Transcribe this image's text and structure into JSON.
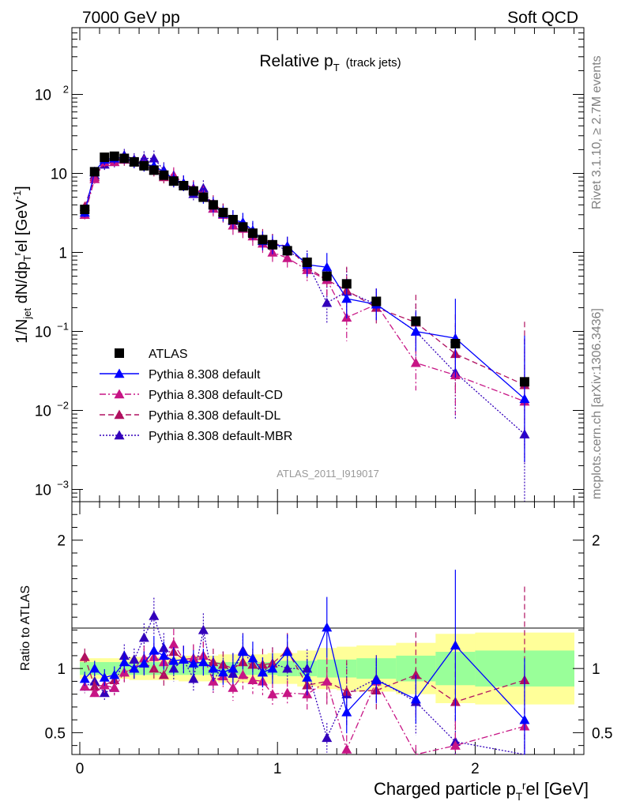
{
  "header": {
    "left": "7000 GeV pp",
    "right": "Soft QCD"
  },
  "side_text": {
    "top": "Rivet 3.1.10, ≥ 2.7M events",
    "bottom": "mcplots.cern.ch [arXiv:1306.3436]"
  },
  "chart_data": [
    {
      "type": "scatter",
      "panel": "main",
      "title": "Relative p",
      "title_sub": "T",
      "title_extra": "(track jets)",
      "watermark": "ATLAS_2011_I919017",
      "ylabel": "1/N_jet dN/dp_T^rel [GeV^-1]",
      "yscale": "log",
      "xlim": [
        -0.04,
        2.55
      ],
      "ylim": [
        0.0007,
        700
      ],
      "y_ticks": [
        {
          "v": 0.001,
          "label": "10",
          "sup": "−3"
        },
        {
          "v": 0.01,
          "label": "10",
          "sup": "−2"
        },
        {
          "v": 0.1,
          "label": "10",
          "sup": "−1"
        },
        {
          "v": 1,
          "label": "1",
          "sup": ""
        },
        {
          "v": 10,
          "label": "10",
          "sup": ""
        },
        {
          "v": 100,
          "label": "10",
          "sup": "2"
        }
      ],
      "legend_position": "lower-left",
      "x": [
        0.025,
        0.075,
        0.125,
        0.175,
        0.225,
        0.275,
        0.325,
        0.375,
        0.425,
        0.475,
        0.525,
        0.575,
        0.625,
        0.675,
        0.725,
        0.775,
        0.825,
        0.875,
        0.925,
        0.975,
        1.05,
        1.15,
        1.25,
        1.35,
        1.5,
        1.7,
        1.9,
        2.25
      ],
      "series": [
        {
          "name": "ATLAS",
          "marker": "square",
          "color": "#000000",
          "line": "none",
          "values": [
            3.5,
            10.5,
            16,
            16.5,
            15.5,
            14,
            12.5,
            11,
            9.5,
            8,
            7,
            6,
            5,
            4,
            3.2,
            2.6,
            2.1,
            1.75,
            1.45,
            1.25,
            1.05,
            0.75,
            0.5,
            0.4,
            0.24,
            0.135,
            0.07,
            0.023
          ],
          "err": [
            0.05,
            0.05,
            0.05,
            0.05,
            0.05,
            0.05,
            0.05,
            0.05,
            0.05,
            0.05,
            0.05,
            0.05,
            0.05,
            0.05,
            0.05,
            0.05,
            0.05,
            0.05,
            0.05,
            0.05,
            0.05,
            0.05,
            0.05,
            0.05,
            0.05,
            0.05,
            0.05,
            0.05
          ]
        },
        {
          "name": "Pythia 8.308 default",
          "marker": "triangle",
          "color": "#0000ff",
          "line": "solid",
          "values": [
            3.2,
            10.5,
            15,
            15.5,
            16,
            14,
            13,
            12.5,
            10.5,
            8.5,
            7.5,
            6.2,
            5.2,
            4.0,
            3.1,
            2.6,
            2.4,
            1.9,
            1.4,
            1.25,
            1.2,
            0.7,
            0.65,
            0.26,
            0.22,
            0.1,
            0.082,
            0.014
          ],
          "err": [
            0.06,
            0.06,
            0.07,
            0.07,
            0.08,
            0.08,
            0.09,
            0.1,
            0.1,
            0.1,
            0.1,
            0.1,
            0.1,
            0.1,
            0.1,
            0.12,
            0.12,
            0.12,
            0.12,
            0.12,
            0.12,
            0.15,
            0.18,
            0.25,
            0.2,
            0.25,
            0.5,
            0.8
          ]
        },
        {
          "name": "Pythia 8.308 default-CD",
          "marker": "triangle",
          "color": "#c71585",
          "line": "dashdot",
          "values": [
            3.0,
            8.5,
            14,
            14,
            15,
            14,
            13.5,
            12,
            10,
            9.5,
            7.5,
            6.5,
            5.5,
            3.6,
            3.0,
            2.2,
            2.0,
            1.6,
            1.3,
            1.0,
            0.85,
            0.6,
            0.45,
            0.15,
            0.22,
            0.04,
            0.028,
            0.013
          ],
          "err": [
            0.06,
            0.06,
            0.07,
            0.07,
            0.08,
            0.08,
            0.09,
            0.1,
            0.1,
            0.1,
            0.1,
            0.1,
            0.1,
            0.1,
            0.1,
            0.12,
            0.12,
            0.12,
            0.12,
            0.12,
            0.12,
            0.15,
            0.2,
            0.3,
            0.2,
            0.35,
            0.5,
            0.8
          ]
        },
        {
          "name": "Pythia 8.308 default-DL",
          "marker": "triangle",
          "color": "#b01060",
          "line": "dashed",
          "values": [
            3.8,
            9,
            14,
            15,
            15,
            14,
            13,
            11,
            9,
            9,
            7.5,
            6.5,
            5.5,
            4.2,
            3.3,
            2.6,
            2.2,
            1.8,
            1.5,
            1.3,
            1.2,
            0.65,
            0.45,
            0.33,
            0.2,
            0.13,
            0.052,
            0.021
          ],
          "err": [
            0.06,
            0.06,
            0.07,
            0.07,
            0.08,
            0.08,
            0.09,
            0.1,
            0.1,
            0.1,
            0.1,
            0.1,
            0.1,
            0.1,
            0.1,
            0.12,
            0.12,
            0.12,
            0.12,
            0.12,
            0.12,
            0.15,
            0.2,
            0.3,
            0.2,
            0.35,
            0.5,
            0.8
          ]
        },
        {
          "name": "Pythia 8.308 default-MBR",
          "marker": "triangle",
          "color": "#3300bb",
          "line": "dotted",
          "values": [
            3.0,
            9.5,
            13,
            14,
            17,
            15,
            15.5,
            15.5,
            11,
            8,
            7.5,
            5.5,
            6.5,
            3.6,
            3.3,
            2.5,
            2.4,
            1.8,
            1.4,
            1.3,
            1.05,
            0.75,
            0.23,
            0.32,
            0.22,
            0.1,
            0.03,
            0.005
          ],
          "err": [
            0.06,
            0.06,
            0.07,
            0.07,
            0.08,
            0.08,
            0.09,
            0.1,
            0.1,
            0.1,
            0.1,
            0.1,
            0.1,
            0.1,
            0.1,
            0.12,
            0.12,
            0.12,
            0.12,
            0.12,
            0.12,
            0.15,
            0.25,
            0.3,
            0.2,
            0.35,
            0.6,
            1.2
          ]
        }
      ]
    },
    {
      "type": "line",
      "panel": "ratio",
      "ylabel": "Ratio to ATLAS",
      "xlabel": "Charged particle p_T^rel [GeV]",
      "xlim": [
        -0.04,
        2.55
      ],
      "ylim": [
        0.33,
        2.3
      ],
      "y_ticks": [
        {
          "v": 0.5,
          "label": "0.5"
        },
        {
          "v": 1,
          "label": "1"
        },
        {
          "v": 2,
          "label": "2"
        }
      ],
      "x_ticks": [
        {
          "v": 0,
          "label": "0"
        },
        {
          "v": 1,
          "label": "1"
        },
        {
          "v": 2,
          "label": "2"
        }
      ],
      "x": [
        0.025,
        0.075,
        0.125,
        0.175,
        0.225,
        0.275,
        0.325,
        0.375,
        0.425,
        0.475,
        0.525,
        0.575,
        0.625,
        0.675,
        0.725,
        0.775,
        0.825,
        0.875,
        0.925,
        0.975,
        1.05,
        1.15,
        1.25,
        1.35,
        1.5,
        1.7,
        1.9,
        2.25
      ],
      "band_edges": [
        0,
        0.05,
        0.1,
        0.15,
        0.2,
        0.25,
        0.3,
        0.35,
        0.4,
        0.45,
        0.5,
        0.55,
        0.6,
        0.65,
        0.7,
        0.75,
        0.8,
        0.85,
        0.9,
        0.95,
        1.0,
        1.1,
        1.2,
        1.3,
        1.4,
        1.6,
        1.8,
        2.0,
        2.5
      ],
      "band_stat": [
        0.05,
        0.05,
        0.05,
        0.05,
        0.05,
        0.05,
        0.05,
        0.05,
        0.05,
        0.05,
        0.05,
        0.05,
        0.05,
        0.05,
        0.05,
        0.05,
        0.05,
        0.05,
        0.05,
        0.05,
        0.06,
        0.06,
        0.07,
        0.07,
        0.08,
        0.1,
        0.13,
        0.14
      ],
      "band_total": [
        0.08,
        0.08,
        0.08,
        0.08,
        0.08,
        0.09,
        0.09,
        0.09,
        0.09,
        0.09,
        0.1,
        0.1,
        0.1,
        0.1,
        0.11,
        0.11,
        0.11,
        0.11,
        0.11,
        0.12,
        0.12,
        0.14,
        0.16,
        0.17,
        0.18,
        0.2,
        0.27,
        0.28
      ],
      "series": [
        {
          "name": "Pythia 8.308 default",
          "color": "#0000ff",
          "line": "solid",
          "values": [
            0.92,
            1.0,
            0.93,
            0.95,
            1.05,
            1.0,
            1.04,
            1.14,
            1.1,
            1.06,
            1.07,
            1.04,
            1.05,
            1.0,
            0.97,
            1.0,
            1.13,
            1.08,
            0.97,
            1.0,
            1.13,
            0.93,
            1.32,
            0.66,
            0.91,
            0.76,
            1.18,
            0.6
          ],
          "err": [
            0.06,
            0.06,
            0.07,
            0.07,
            0.08,
            0.08,
            0.09,
            0.1,
            0.1,
            0.1,
            0.1,
            0.1,
            0.1,
            0.1,
            0.1,
            0.12,
            0.12,
            0.12,
            0.12,
            0.12,
            0.12,
            0.15,
            0.18,
            0.25,
            0.2,
            0.25,
            0.5,
            0.8
          ]
        },
        {
          "name": "Pythia 8.308 default-CD",
          "color": "#c71585",
          "line": "dashdot",
          "values": [
            0.86,
            0.81,
            0.87,
            0.85,
            0.97,
            1.0,
            1.08,
            1.09,
            1.05,
            1.19,
            1.07,
            1.08,
            1.1,
            0.9,
            0.94,
            0.85,
            0.95,
            0.91,
            0.9,
            0.8,
            0.81,
            0.8,
            0.9,
            0.37,
            0.9,
            0.3,
            0.4,
            0.55
          ],
          "err": [
            0.06,
            0.06,
            0.07,
            0.07,
            0.08,
            0.08,
            0.09,
            0.1,
            0.1,
            0.1,
            0.1,
            0.1,
            0.1,
            0.1,
            0.1,
            0.12,
            0.12,
            0.12,
            0.12,
            0.12,
            0.12,
            0.15,
            0.2,
            0.3,
            0.2,
            0.35,
            0.5,
            0.8
          ]
        },
        {
          "name": "Pythia 8.308 default-DL",
          "color": "#b01060",
          "line": "dashed",
          "values": [
            1.09,
            0.86,
            0.87,
            0.91,
            0.97,
            1.0,
            1.04,
            1.0,
            0.95,
            1.13,
            1.07,
            1.08,
            1.1,
            1.05,
            1.03,
            1.0,
            1.05,
            1.03,
            1.03,
            1.04,
            1.14,
            0.87,
            0.9,
            0.82,
            0.83,
            0.95,
            0.74,
            0.91
          ],
          "err": [
            0.06,
            0.06,
            0.07,
            0.07,
            0.08,
            0.08,
            0.09,
            0.1,
            0.1,
            0.1,
            0.1,
            0.1,
            0.1,
            0.1,
            0.1,
            0.12,
            0.12,
            0.12,
            0.12,
            0.12,
            0.12,
            0.15,
            0.2,
            0.3,
            0.2,
            0.35,
            0.5,
            0.8
          ]
        },
        {
          "name": "Pythia 8.308 default-MBR",
          "color": "#3300bb",
          "line": "dotted",
          "values": [
            0.86,
            0.9,
            0.81,
            0.85,
            1.1,
            1.07,
            1.24,
            1.41,
            1.16,
            1.0,
            1.07,
            0.92,
            1.3,
            0.9,
            1.03,
            0.96,
            1.14,
            1.03,
            0.97,
            1.04,
            1.0,
            1.0,
            0.46,
            0.8,
            0.92,
            0.74,
            0.43,
            0.22
          ],
          "err": [
            0.06,
            0.06,
            0.07,
            0.07,
            0.08,
            0.08,
            0.09,
            0.1,
            0.1,
            0.1,
            0.1,
            0.1,
            0.1,
            0.1,
            0.1,
            0.12,
            0.12,
            0.12,
            0.12,
            0.12,
            0.12,
            0.15,
            0.25,
            0.3,
            0.2,
            0.35,
            0.6,
            1.2
          ]
        }
      ]
    }
  ]
}
